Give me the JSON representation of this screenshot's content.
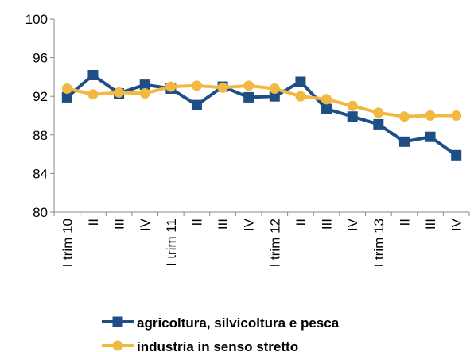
{
  "chart_data": {
    "type": "line",
    "categories": [
      "I trim 10",
      "II",
      "III",
      "IV",
      "I trim 11",
      "II",
      "III",
      "IV",
      "I trim 12",
      "II",
      "III",
      "IV",
      "I trim 13",
      "II",
      "III",
      "IV"
    ],
    "series": [
      {
        "name": "agricoltura, silvicoltura e pesca",
        "color": "#1f4e86",
        "marker": "square",
        "values": [
          91.9,
          94.2,
          92.3,
          93.2,
          92.8,
          91.1,
          93.0,
          91.9,
          92.0,
          93.5,
          90.7,
          89.9,
          89.1,
          87.3,
          87.8,
          85.9
        ]
      },
      {
        "name": "industria in senso stretto",
        "color": "#f2b940",
        "marker": "circle",
        "values": [
          92.8,
          92.2,
          92.4,
          92.3,
          93.0,
          93.1,
          92.9,
          93.1,
          92.8,
          92.0,
          91.7,
          91.0,
          90.3,
          89.9,
          90.0,
          90.0
        ]
      }
    ],
    "ylim": [
      80,
      100
    ],
    "yticks": [
      80,
      84,
      88,
      92,
      96,
      100
    ],
    "grid": false,
    "legend": "bottom"
  }
}
